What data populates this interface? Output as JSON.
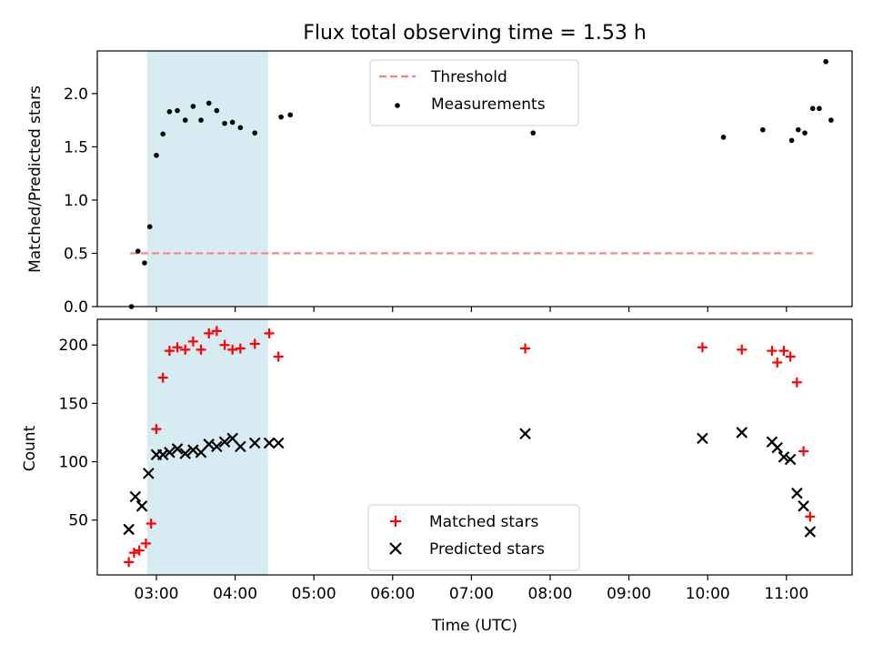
{
  "chart_data": [
    {
      "type": "scatter",
      "title": "Flux total observing time = 1.53 h",
      "xlabel": "",
      "ylabel": "Matched/Predicted stars",
      "xlim": [
        "02:15",
        "11:50"
      ],
      "ylim": [
        0,
        2.4
      ],
      "yticks": [
        0.0,
        0.5,
        1.0,
        1.5,
        2.0
      ],
      "ytick_labels": [
        "0.0",
        "0.5",
        "1.0",
        "1.5",
        "2.0"
      ],
      "grid": false,
      "legend_position": "top-center",
      "highlight_span": [
        "02:53",
        "04:25"
      ],
      "series": [
        {
          "name": "Threshold",
          "style": "dashed-line",
          "color": "#ff7f7f",
          "x": [
            "02:40",
            "11:20"
          ],
          "y": [
            0.5,
            0.5
          ]
        },
        {
          "name": "Measurements",
          "style": "dot",
          "color": "#000000",
          "x": [
            "02:41",
            "02:46",
            "02:51",
            "02:55",
            "03:00",
            "03:05",
            "03:10",
            "03:16",
            "03:22",
            "03:28",
            "03:34",
            "03:40",
            "03:46",
            "03:52",
            "03:58",
            "04:04",
            "04:15",
            "04:35",
            "04:42",
            "07:47",
            "10:12",
            "10:42",
            "11:04",
            "11:09",
            "11:14",
            "11:20",
            "11:25",
            "11:30",
            "11:34"
          ],
          "y": [
            0.0,
            0.52,
            0.41,
            0.75,
            1.42,
            1.62,
            1.83,
            1.84,
            1.75,
            1.88,
            1.75,
            1.91,
            1.84,
            1.72,
            1.73,
            1.68,
            1.63,
            1.78,
            1.8,
            1.63,
            1.59,
            1.66,
            1.56,
            1.66,
            1.63,
            1.86,
            1.86,
            2.3,
            1.75
          ]
        }
      ]
    },
    {
      "type": "scatter",
      "title": "",
      "xlabel": "Time (UTC)",
      "ylabel": "Count",
      "xlim": [
        "02:15",
        "11:50"
      ],
      "ylim": [
        3,
        222
      ],
      "yticks": [
        50,
        100,
        150,
        200
      ],
      "ytick_labels": [
        "50",
        "100",
        "150",
        "200"
      ],
      "xtick_labels": [
        "03:00",
        "04:00",
        "05:00",
        "06:00",
        "07:00",
        "08:00",
        "09:00",
        "10:00",
        "11:00"
      ],
      "grid": false,
      "legend_position": "bottom-center",
      "highlight_span": [
        "02:53",
        "04:25"
      ],
      "series": [
        {
          "name": "Matched stars",
          "style": "plus",
          "color": "#ff0000",
          "x": [
            "02:39",
            "02:43",
            "02:47",
            "02:52",
            "02:56",
            "03:00",
            "03:05",
            "03:10",
            "03:16",
            "03:22",
            "03:28",
            "03:34",
            "03:40",
            "03:46",
            "03:52",
            "03:58",
            "04:04",
            "04:15",
            "04:26",
            "04:33",
            "07:41",
            "09:56",
            "10:26",
            "10:49",
            "10:53",
            "10:58",
            "11:03",
            "11:08",
            "11:13",
            "11:18"
          ],
          "y": [
            14,
            22,
            24,
            30,
            47,
            128,
            172,
            195,
            198,
            196,
            203,
            196,
            210,
            212,
            200,
            196,
            197,
            201,
            210,
            190,
            197,
            198,
            196,
            195,
            185,
            195,
            190,
            168,
            109,
            53
          ]
        },
        {
          "name": "Predicted stars",
          "style": "x",
          "color": "#000000",
          "x": [
            "02:39",
            "02:44",
            "02:49",
            "02:54",
            "03:00",
            "03:05",
            "03:10",
            "03:16",
            "03:22",
            "03:28",
            "03:34",
            "03:40",
            "03:46",
            "03:52",
            "03:58",
            "04:04",
            "04:15",
            "04:26",
            "04:33",
            "07:41",
            "09:56",
            "10:26",
            "10:49",
            "10:53",
            "10:58",
            "11:03",
            "11:08",
            "11:13",
            "11:18"
          ],
          "y": [
            42,
            70,
            62,
            90,
            106,
            106,
            108,
            111,
            107,
            110,
            108,
            115,
            113,
            117,
            120,
            113,
            116,
            116,
            116,
            124,
            120,
            125,
            117,
            112,
            104,
            102,
            73,
            62,
            40
          ]
        }
      ]
    }
  ]
}
